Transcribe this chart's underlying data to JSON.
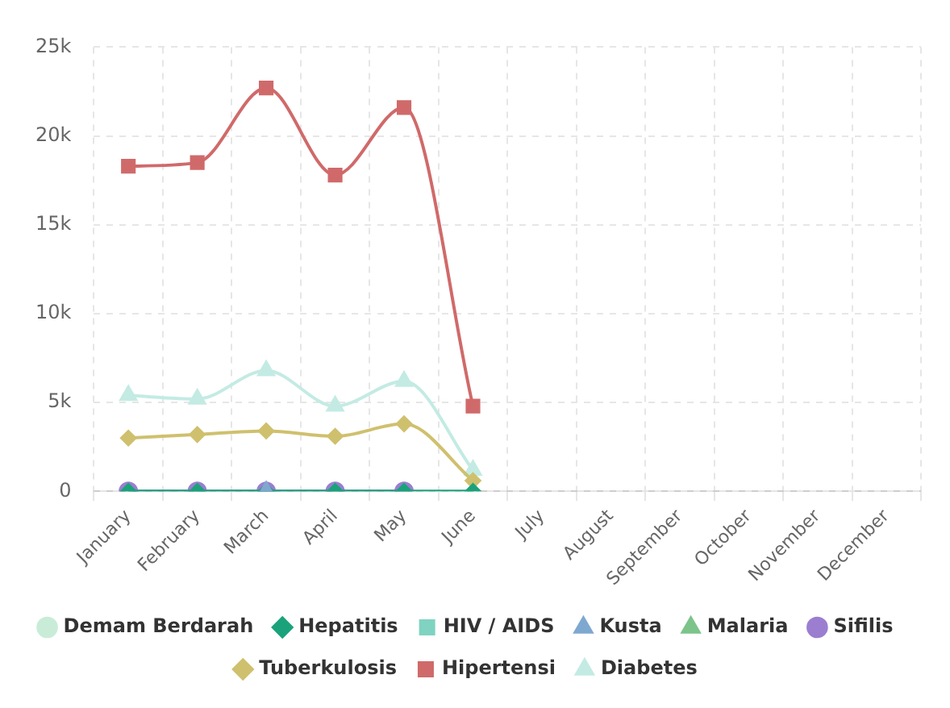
{
  "chart_data": {
    "type": "line",
    "categories": [
      "January",
      "February",
      "March",
      "April",
      "May",
      "June",
      "July",
      "August",
      "September",
      "October",
      "November",
      "December"
    ],
    "ylim": [
      0,
      25000
    ],
    "yticks": [
      {
        "value": 0,
        "label": "0"
      },
      {
        "value": 5000,
        "label": "5k"
      },
      {
        "value": 10000,
        "label": "10k"
      },
      {
        "value": 15000,
        "label": "15k"
      },
      {
        "value": 20000,
        "label": "20k"
      },
      {
        "value": 25000,
        "label": "25k"
      }
    ],
    "grid": true,
    "legend": "bottom",
    "line_style": "solid",
    "series": [
      {
        "name": "Demam Berdarah",
        "color": "#c8ecd8",
        "marker": "circle",
        "values": [
          null,
          null,
          null,
          null,
          null,
          null,
          null,
          null,
          null,
          null,
          null,
          null
        ]
      },
      {
        "name": "Hepatitis",
        "color": "#1aa37a",
        "marker": "diamond",
        "values": [
          0,
          0,
          0,
          0,
          0,
          0,
          null,
          null,
          null,
          null,
          null,
          null
        ]
      },
      {
        "name": "HIV / AIDS",
        "color": "#7fd3c0",
        "marker": "square",
        "values": [
          null,
          null,
          null,
          null,
          null,
          null,
          null,
          null,
          null,
          null,
          null,
          null
        ]
      },
      {
        "name": "Kusta",
        "color": "#7fa8d0",
        "marker": "triangle",
        "values": [
          null,
          null,
          0,
          null,
          null,
          null,
          null,
          null,
          null,
          null,
          null,
          null
        ]
      },
      {
        "name": "Malaria",
        "color": "#7cc48a",
        "marker": "triangle",
        "values": [
          null,
          null,
          null,
          null,
          null,
          null,
          null,
          null,
          null,
          null,
          null,
          null
        ]
      },
      {
        "name": "Sifilis",
        "color": "#9b7ed0",
        "marker": "circle",
        "values": [
          0,
          0,
          0,
          0,
          0,
          null,
          null,
          null,
          null,
          null,
          null,
          null
        ]
      },
      {
        "name": "Tuberkulosis",
        "color": "#cfc06e",
        "marker": "diamond",
        "values": [
          3000,
          3200,
          3400,
          3100,
          3800,
          600,
          null,
          null,
          null,
          null,
          null,
          null
        ]
      },
      {
        "name": "Hipertensi",
        "color": "#d06a6a",
        "marker": "square",
        "values": [
          18300,
          18500,
          22700,
          17800,
          21600,
          4800,
          null,
          null,
          null,
          null,
          null,
          null
        ]
      },
      {
        "name": "Diabetes",
        "color": "#c3ebe3",
        "marker": "triangle",
        "values": [
          5400,
          5200,
          6800,
          4800,
          6200,
          1200,
          null,
          null,
          null,
          null,
          null,
          null
        ]
      }
    ]
  }
}
